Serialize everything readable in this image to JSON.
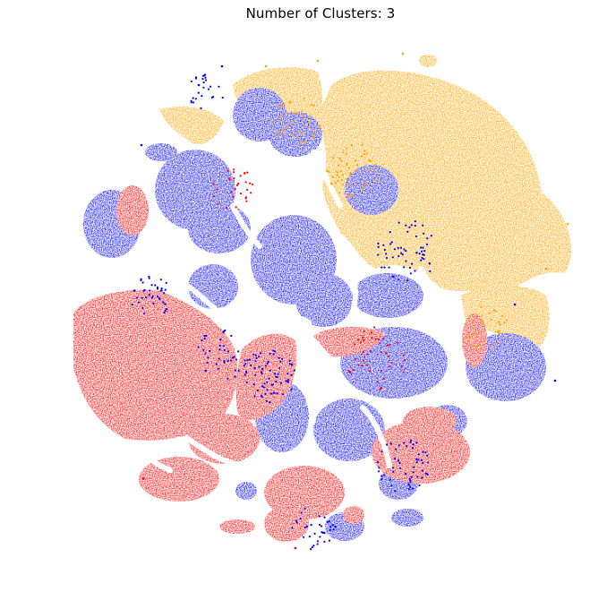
{
  "chart_data": {
    "type": "scatter",
    "title": "Number of Clusters: 3",
    "xlabel": "",
    "ylabel": "",
    "axes_visible": false,
    "grid": false,
    "legend": "none",
    "series": [
      {
        "color": "#ff0000",
        "values": "not readable individually; red points form the left/lower-left region and several small groups along the lower edge"
      },
      {
        "color": "#0000ff",
        "values": "not readable individually; blue points dominate the center and form several islands across the disc"
      },
      {
        "color": "#ffa500",
        "values": "not readable individually; orange points occupy the upper-right portion and a band on the right side"
      }
    ]
  },
  "colors": {
    "cluster_red": "#ff0000",
    "cluster_blue": "#0000ff",
    "cluster_orange": "#ffa500",
    "background": "#ffffff"
  }
}
